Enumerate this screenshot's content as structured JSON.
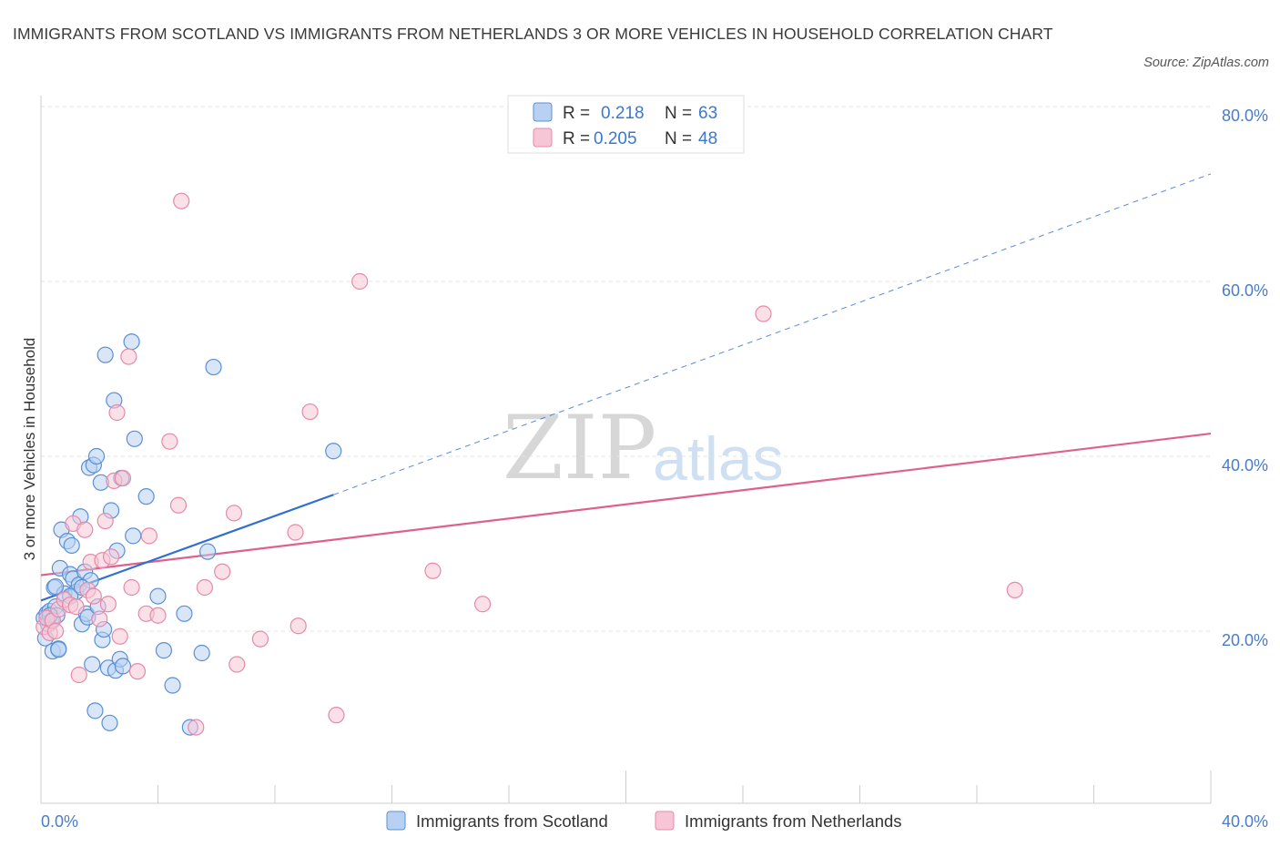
{
  "title": "IMMIGRANTS FROM SCOTLAND VS IMMIGRANTS FROM NETHERLANDS 3 OR MORE VEHICLES IN HOUSEHOLD CORRELATION CHART",
  "source": "Source: ZipAtlas.com",
  "watermark": {
    "zip": "ZIP",
    "atlas": "atlas"
  },
  "colors": {
    "scotland_fill": "#b8d1f3",
    "scotland_stroke": "#5b8fd6",
    "scotland_line": "#2f6fd0",
    "netherlands_fill": "#f7c6d6",
    "netherlands_stroke": "#e58aa8",
    "netherlands_line": "#e0608d",
    "grid": "#e3e3e3",
    "tick_text": "#4a7cc7"
  },
  "legend": {
    "rows": [
      {
        "r_label": "R =",
        "r_value": "0.218",
        "n_label": "N =",
        "n_value": "63"
      },
      {
        "r_label": "R =",
        "r_value": "0.205",
        "n_label": "N =",
        "n_value": "48"
      }
    ]
  },
  "chart_data": {
    "type": "scatter",
    "title": "IMMIGRANTS FROM SCOTLAND VS IMMIGRANTS FROM NETHERLANDS 3 OR MORE VEHICLES IN HOUSEHOLD CORRELATION CHART",
    "xlabel": "",
    "ylabel": "3 or more Vehicles in Household",
    "xlim": [
      0,
      40
    ],
    "ylim": [
      0,
      80
    ],
    "x_tick_labels": [
      "0.0%",
      "40.0%"
    ],
    "y_ticks": [
      20,
      40,
      60,
      80
    ],
    "y_tick_labels": [
      "20.0%",
      "40.0%",
      "60.0%",
      "80.0%"
    ],
    "grid": true,
    "legend_position": "top-center",
    "series": [
      {
        "name": "Immigrants from Scotland",
        "points": [
          [
            0.1,
            21.5
          ],
          [
            0.15,
            19.2
          ],
          [
            0.2,
            22.0
          ],
          [
            0.25,
            20.8
          ],
          [
            0.3,
            22.3
          ],
          [
            0.35,
            21.2
          ],
          [
            0.4,
            17.7
          ],
          [
            0.45,
            25.0
          ],
          [
            0.5,
            22.8
          ],
          [
            0.55,
            21.8
          ],
          [
            0.6,
            18.0
          ],
          [
            0.65,
            27.2
          ],
          [
            0.7,
            31.6
          ],
          [
            0.8,
            24.3
          ],
          [
            0.9,
            30.3
          ],
          [
            1.0,
            26.5
          ],
          [
            1.05,
            29.8
          ],
          [
            1.1,
            26.0
          ],
          [
            1.2,
            24.5
          ],
          [
            1.3,
            25.3
          ],
          [
            1.35,
            33.1
          ],
          [
            1.4,
            20.8
          ],
          [
            1.5,
            26.8
          ],
          [
            1.55,
            22.0
          ],
          [
            1.6,
            21.6
          ],
          [
            1.65,
            38.7
          ],
          [
            1.7,
            25.8
          ],
          [
            1.75,
            16.2
          ],
          [
            1.8,
            39.0
          ],
          [
            1.85,
            10.9
          ],
          [
            1.9,
            40.0
          ],
          [
            1.95,
            22.8
          ],
          [
            2.05,
            37.0
          ],
          [
            2.1,
            19.0
          ],
          [
            2.15,
            20.2
          ],
          [
            2.2,
            51.6
          ],
          [
            2.3,
            15.8
          ],
          [
            2.35,
            9.5
          ],
          [
            2.4,
            33.8
          ],
          [
            2.5,
            46.4
          ],
          [
            2.55,
            15.5
          ],
          [
            2.6,
            29.2
          ],
          [
            2.7,
            16.8
          ],
          [
            2.75,
            37.5
          ],
          [
            2.8,
            16.0
          ],
          [
            3.1,
            53.1
          ],
          [
            3.15,
            30.9
          ],
          [
            3.2,
            42.0
          ],
          [
            3.6,
            35.4
          ],
          [
            4.0,
            24.0
          ],
          [
            4.2,
            17.8
          ],
          [
            4.5,
            13.8
          ],
          [
            4.9,
            22.0
          ],
          [
            5.1,
            9.0
          ],
          [
            5.5,
            17.5
          ],
          [
            5.7,
            29.1
          ],
          [
            5.9,
            50.2
          ],
          [
            10.0,
            40.6
          ],
          [
            0.6,
            17.9
          ],
          [
            1.0,
            24.0
          ],
          [
            0.5,
            25.1
          ],
          [
            1.4,
            25.0
          ],
          [
            0.3,
            21.8
          ]
        ],
        "trend": {
          "x": [
            0.0,
            10.0
          ],
          "y": [
            23.5,
            35.6
          ],
          "extended_to": [
            40.0,
            72.3
          ]
        }
      },
      {
        "name": "Immigrants from Netherlands",
        "points": [
          [
            0.1,
            20.5
          ],
          [
            0.2,
            21.5
          ],
          [
            0.3,
            19.8
          ],
          [
            0.4,
            21.2
          ],
          [
            0.5,
            20.0
          ],
          [
            0.6,
            22.5
          ],
          [
            0.8,
            23.6
          ],
          [
            1.0,
            23.0
          ],
          [
            1.1,
            32.3
          ],
          [
            1.2,
            22.8
          ],
          [
            1.3,
            15.0
          ],
          [
            1.5,
            31.6
          ],
          [
            1.6,
            24.7
          ],
          [
            1.7,
            27.9
          ],
          [
            1.8,
            24.0
          ],
          [
            2.0,
            21.4
          ],
          [
            2.1,
            28.1
          ],
          [
            2.2,
            32.6
          ],
          [
            2.3,
            23.1
          ],
          [
            2.4,
            28.5
          ],
          [
            2.5,
            37.2
          ],
          [
            2.6,
            45.0
          ],
          [
            2.7,
            19.4
          ],
          [
            2.8,
            37.5
          ],
          [
            3.0,
            51.4
          ],
          [
            3.1,
            25.0
          ],
          [
            3.3,
            15.4
          ],
          [
            3.6,
            22.0
          ],
          [
            3.7,
            30.9
          ],
          [
            4.0,
            21.8
          ],
          [
            4.4,
            41.7
          ],
          [
            4.7,
            34.4
          ],
          [
            4.8,
            69.2
          ],
          [
            5.3,
            9.0
          ],
          [
            5.6,
            25.0
          ],
          [
            6.2,
            26.8
          ],
          [
            6.6,
            33.5
          ],
          [
            6.7,
            16.2
          ],
          [
            7.5,
            19.1
          ],
          [
            8.7,
            31.3
          ],
          [
            8.8,
            20.6
          ],
          [
            9.2,
            45.1
          ],
          [
            10.1,
            10.4
          ],
          [
            10.9,
            60.0
          ],
          [
            13.4,
            26.9
          ],
          [
            15.1,
            23.1
          ],
          [
            24.7,
            56.3
          ],
          [
            33.3,
            24.7
          ]
        ],
        "trend": {
          "x": [
            0.0,
            40.0
          ],
          "y": [
            26.4,
            42.6
          ]
        }
      }
    ]
  },
  "bottom_legend": [
    {
      "label": "Immigrants from Scotland"
    },
    {
      "label": "Immigrants from Netherlands"
    }
  ]
}
